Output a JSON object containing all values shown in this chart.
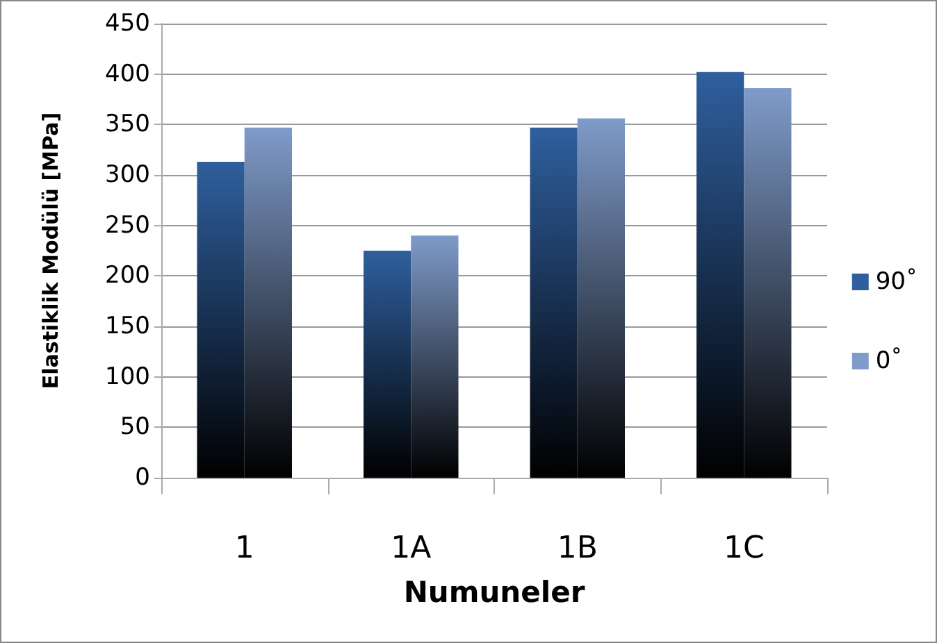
{
  "chart_data": {
    "type": "bar",
    "xlabel": "Numuneler",
    "ylabel": "Elastiklik Modülü [MPa]",
    "categories": [
      "1",
      "1A",
      "1B",
      "1C"
    ],
    "series": [
      {
        "name": "90˚",
        "color": "#2f5f9e",
        "values": [
          313,
          225,
          347,
          402
        ]
      },
      {
        "name": "0˚",
        "color": "#7f9bc9",
        "values": [
          347,
          240,
          356,
          386
        ]
      }
    ],
    "ylim": [
      0,
      450
    ],
    "yticks": [
      0,
      50,
      100,
      150,
      200,
      250,
      300,
      350,
      400,
      450
    ],
    "grid": "y",
    "legend": "right"
  }
}
